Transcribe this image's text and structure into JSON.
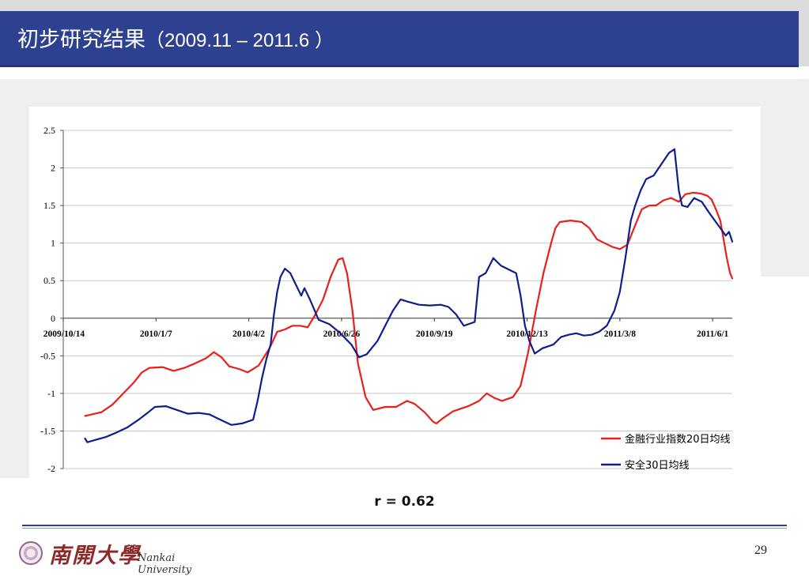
{
  "slide": {
    "title_cn": "初步研究结果",
    "title_range": "（2009.11 – 2011.6 ）",
    "caption": "r = 0.62",
    "page_number": "29",
    "logo_cn": "南開大學",
    "logo_en": "Nankai University",
    "accent_color": "#2e4191"
  },
  "chart_data": {
    "type": "line",
    "title": "",
    "xlabel": "",
    "ylabel": "",
    "ylim": [
      -2,
      2.5
    ],
    "yticks": [
      2.5,
      2,
      1.5,
      1,
      0.5,
      0,
      -0.5,
      -1,
      -1.5,
      -2
    ],
    "xlim": [
      "2009-10-14",
      "2011-06-19"
    ],
    "xtick_dates": [
      "2009-10-14",
      "2010-01-07",
      "2010-04-02",
      "2010-06-26",
      "2010-09-19",
      "2010-12-13",
      "2011-03-08",
      "2011-06-01"
    ],
    "xtick_labels": [
      "2009/10/14",
      "2010/1/7",
      "2010/4/2",
      "2010/6/26",
      "2010/9/19",
      "2010/12/13",
      "2011/3/8",
      "2011/6/1"
    ],
    "grid": "horizontal",
    "legend_position": "bottom-right",
    "series": [
      {
        "name": "金融行业指数20日均线",
        "color": "#e8201c",
        "points": [
          [
            "2009-11-03",
            -1.3
          ],
          [
            "2009-11-18",
            -1.25
          ],
          [
            "2009-11-28",
            -1.15
          ],
          [
            "2009-12-08",
            -1.0
          ],
          [
            "2009-12-18",
            -0.85
          ],
          [
            "2009-12-25",
            -0.72
          ],
          [
            "2010-01-01",
            -0.66
          ],
          [
            "2010-01-13",
            -0.65
          ],
          [
            "2010-01-23",
            -0.7
          ],
          [
            "2010-02-02",
            -0.66
          ],
          [
            "2010-02-12",
            -0.6
          ],
          [
            "2010-02-22",
            -0.53
          ],
          [
            "2010-03-01",
            -0.45
          ],
          [
            "2010-03-08",
            -0.52
          ],
          [
            "2010-03-15",
            -0.64
          ],
          [
            "2010-03-25",
            -0.68
          ],
          [
            "2010-04-01",
            -0.72
          ],
          [
            "2010-04-11",
            -0.63
          ],
          [
            "2010-04-21",
            -0.4
          ],
          [
            "2010-04-28",
            -0.18
          ],
          [
            "2010-05-05",
            -0.15
          ],
          [
            "2010-05-12",
            -0.1
          ],
          [
            "2010-05-19",
            -0.1
          ],
          [
            "2010-05-26",
            -0.12
          ],
          [
            "2010-06-02",
            0.05
          ],
          [
            "2010-06-09",
            0.25
          ],
          [
            "2010-06-16",
            0.55
          ],
          [
            "2010-06-23",
            0.78
          ],
          [
            "2010-06-27",
            0.8
          ],
          [
            "2010-07-01",
            0.6
          ],
          [
            "2010-07-06",
            0.1
          ],
          [
            "2010-07-11",
            -0.6
          ],
          [
            "2010-07-18",
            -1.05
          ],
          [
            "2010-07-25",
            -1.22
          ],
          [
            "2010-08-05",
            -1.18
          ],
          [
            "2010-08-15",
            -1.18
          ],
          [
            "2010-08-25",
            -1.1
          ],
          [
            "2010-09-01",
            -1.14
          ],
          [
            "2010-09-10",
            -1.25
          ],
          [
            "2010-09-18",
            -1.38
          ],
          [
            "2010-09-21",
            -1.4
          ],
          [
            "2010-09-26",
            -1.34
          ],
          [
            "2010-10-06",
            -1.24
          ],
          [
            "2010-10-20",
            -1.17
          ],
          [
            "2010-10-30",
            -1.1
          ],
          [
            "2010-11-06",
            -1.0
          ],
          [
            "2010-11-13",
            -1.06
          ],
          [
            "2010-11-20",
            -1.1
          ],
          [
            "2010-11-30",
            -1.05
          ],
          [
            "2010-12-07",
            -0.9
          ],
          [
            "2010-12-14",
            -0.45
          ],
          [
            "2010-12-21",
            0.1
          ],
          [
            "2010-12-28",
            0.6
          ],
          [
            "2011-01-04",
            1.0
          ],
          [
            "2011-01-08",
            1.2
          ],
          [
            "2011-01-12",
            1.28
          ],
          [
            "2011-01-22",
            1.3
          ],
          [
            "2011-02-01",
            1.28
          ],
          [
            "2011-02-08",
            1.2
          ],
          [
            "2011-02-15",
            1.05
          ],
          [
            "2011-02-22",
            1.0
          ],
          [
            "2011-03-01",
            0.95
          ],
          [
            "2011-03-08",
            0.92
          ],
          [
            "2011-03-15",
            0.98
          ],
          [
            "2011-03-21",
            1.2
          ],
          [
            "2011-03-28",
            1.45
          ],
          [
            "2011-04-04",
            1.5
          ],
          [
            "2011-04-10",
            1.5
          ],
          [
            "2011-04-17",
            1.57
          ],
          [
            "2011-04-24",
            1.6
          ],
          [
            "2011-05-01",
            1.55
          ],
          [
            "2011-05-07",
            1.65
          ],
          [
            "2011-05-14",
            1.67
          ],
          [
            "2011-05-21",
            1.66
          ],
          [
            "2011-05-27",
            1.63
          ],
          [
            "2011-05-31",
            1.58
          ],
          [
            "2011-06-04",
            1.45
          ],
          [
            "2011-06-08",
            1.3
          ],
          [
            "2011-06-11",
            1.05
          ],
          [
            "2011-06-14",
            0.8
          ],
          [
            "2011-06-17",
            0.6
          ],
          [
            "2011-06-19",
            0.53
          ]
        ]
      },
      {
        "name": "安全30日均线",
        "color": "#0f1e8c",
        "points": [
          [
            "2009-11-03",
            -1.6
          ],
          [
            "2009-11-05",
            -1.65
          ],
          [
            "2009-11-12",
            -1.62
          ],
          [
            "2009-11-22",
            -1.58
          ],
          [
            "2009-12-02",
            -1.52
          ],
          [
            "2009-12-12",
            -1.45
          ],
          [
            "2009-12-22",
            -1.35
          ],
          [
            "2009-12-31",
            -1.25
          ],
          [
            "2010-01-06",
            -1.18
          ],
          [
            "2010-01-16",
            -1.17
          ],
          [
            "2010-01-26",
            -1.22
          ],
          [
            "2010-02-05",
            -1.27
          ],
          [
            "2010-02-15",
            -1.26
          ],
          [
            "2010-02-25",
            -1.28
          ],
          [
            "2010-03-07",
            -1.35
          ],
          [
            "2010-03-17",
            -1.42
          ],
          [
            "2010-03-27",
            -1.4
          ],
          [
            "2010-04-06",
            -1.35
          ],
          [
            "2010-04-10",
            -1.1
          ],
          [
            "2010-04-14",
            -0.8
          ],
          [
            "2010-04-18",
            -0.55
          ],
          [
            "2010-04-22",
            -0.35
          ],
          [
            "2010-04-25",
            0.05
          ],
          [
            "2010-04-28",
            0.35
          ],
          [
            "2010-05-01",
            0.55
          ],
          [
            "2010-05-05",
            0.66
          ],
          [
            "2010-05-10",
            0.6
          ],
          [
            "2010-05-15",
            0.45
          ],
          [
            "2010-05-20",
            0.3
          ],
          [
            "2010-05-23",
            0.4
          ],
          [
            "2010-05-28",
            0.25
          ],
          [
            "2010-06-05",
            -0.02
          ],
          [
            "2010-06-15",
            -0.08
          ],
          [
            "2010-06-25",
            -0.2
          ],
          [
            "2010-07-05",
            -0.35
          ],
          [
            "2010-07-12",
            -0.52
          ],
          [
            "2010-07-19",
            -0.48
          ],
          [
            "2010-07-29",
            -0.3
          ],
          [
            "2010-08-05",
            -0.1
          ],
          [
            "2010-08-12",
            0.1
          ],
          [
            "2010-08-19",
            0.25
          ],
          [
            "2010-08-26",
            0.22
          ],
          [
            "2010-09-05",
            0.18
          ],
          [
            "2010-09-15",
            0.17
          ],
          [
            "2010-09-25",
            0.18
          ],
          [
            "2010-10-02",
            0.15
          ],
          [
            "2010-10-09",
            0.05
          ],
          [
            "2010-10-16",
            -0.1
          ],
          [
            "2010-10-26",
            -0.05
          ],
          [
            "2010-10-30",
            0.55
          ],
          [
            "2010-11-05",
            0.6
          ],
          [
            "2010-11-12",
            0.8
          ],
          [
            "2010-11-19",
            0.7
          ],
          [
            "2010-11-26",
            0.65
          ],
          [
            "2010-12-03",
            0.6
          ],
          [
            "2010-12-07",
            0.3
          ],
          [
            "2010-12-11",
            -0.1
          ],
          [
            "2010-12-15",
            -0.3
          ],
          [
            "2010-12-20",
            -0.47
          ],
          [
            "2010-12-27",
            -0.4
          ],
          [
            "2011-01-06",
            -0.35
          ],
          [
            "2011-01-13",
            -0.25
          ],
          [
            "2011-01-20",
            -0.22
          ],
          [
            "2011-01-27",
            -0.2
          ],
          [
            "2011-02-03",
            -0.23
          ],
          [
            "2011-02-10",
            -0.22
          ],
          [
            "2011-02-17",
            -0.18
          ],
          [
            "2011-02-24",
            -0.1
          ],
          [
            "2011-03-03",
            0.1
          ],
          [
            "2011-03-08",
            0.35
          ],
          [
            "2011-03-13",
            0.8
          ],
          [
            "2011-03-18",
            1.3
          ],
          [
            "2011-03-22",
            1.5
          ],
          [
            "2011-03-27",
            1.7
          ],
          [
            "2011-04-01",
            1.85
          ],
          [
            "2011-04-08",
            1.9
          ],
          [
            "2011-04-15",
            2.05
          ],
          [
            "2011-04-22",
            2.2
          ],
          [
            "2011-04-27",
            2.25
          ],
          [
            "2011-05-01",
            1.7
          ],
          [
            "2011-05-04",
            1.5
          ],
          [
            "2011-05-09",
            1.48
          ],
          [
            "2011-05-15",
            1.6
          ],
          [
            "2011-05-22",
            1.55
          ],
          [
            "2011-05-29",
            1.4
          ],
          [
            "2011-06-03",
            1.3
          ],
          [
            "2011-06-08",
            1.2
          ],
          [
            "2011-06-13",
            1.1
          ],
          [
            "2011-06-16",
            1.15
          ],
          [
            "2011-06-19",
            1.02
          ]
        ]
      }
    ]
  }
}
